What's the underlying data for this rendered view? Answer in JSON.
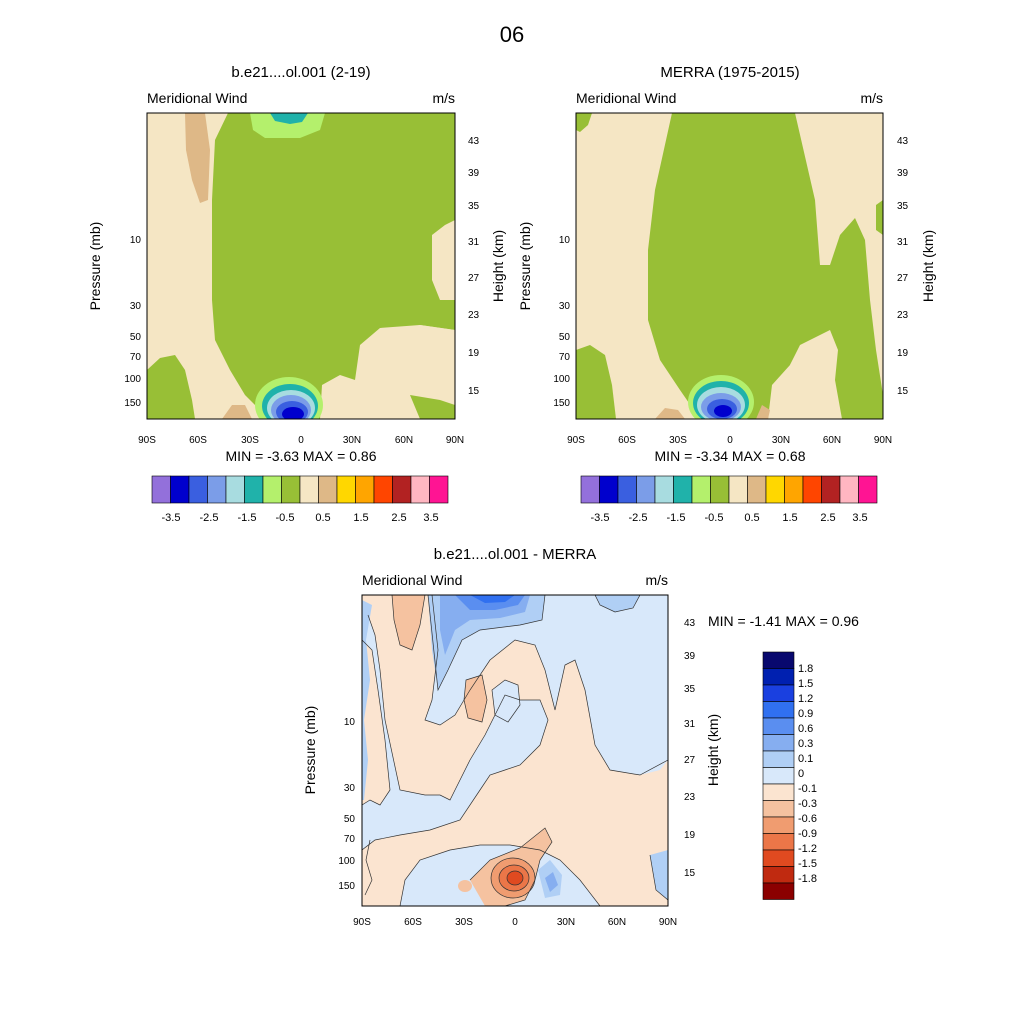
{
  "figure_title": "06",
  "chart_data": [
    {
      "type": "contour",
      "title": "b.e21....ol.001 (2-19)",
      "variable_label": "Meridional Wind",
      "units_label": "m/s",
      "ylabel": "Pressure (mb)",
      "y2label": "Height (km)",
      "x_ticks": [
        "90S",
        "60S",
        "30S",
        "0",
        "30N",
        "60N",
        "90N"
      ],
      "pressure_ticks": [
        "10",
        "30",
        "50",
        "70",
        "100",
        "150"
      ],
      "height_ticks": [
        "43",
        "39",
        "35",
        "31",
        "27",
        "23",
        "19",
        "15"
      ],
      "stats_text": "MIN = -3.63 MAX = 0.86",
      "min": -3.63,
      "max": 0.86,
      "colorbar": {
        "colors": [
          "#9370db",
          "#0000cd",
          "#3a5fe0",
          "#7b9de8",
          "#a8dce0",
          "#20b2aa",
          "#b4f06c",
          "#98bf36",
          "#f5e6c4",
          "#deb887",
          "#ffd700",
          "#ffa500",
          "#ff4500",
          "#b22222",
          "#ffb6c1",
          "#ff1493"
        ],
        "labels": [
          "-3.5",
          "-2.5",
          "-1.5",
          "-0.5",
          "0.5",
          "1.5",
          "2.5",
          "3.5"
        ]
      }
    },
    {
      "type": "contour",
      "title": "MERRA (1975-2015)",
      "variable_label": "Meridional Wind",
      "units_label": "m/s",
      "ylabel": "Pressure (mb)",
      "y2label": "Height (km)",
      "x_ticks": [
        "90S",
        "60S",
        "30S",
        "0",
        "30N",
        "60N",
        "90N"
      ],
      "pressure_ticks": [
        "10",
        "30",
        "50",
        "70",
        "100",
        "150"
      ],
      "height_ticks": [
        "43",
        "39",
        "35",
        "31",
        "27",
        "23",
        "19",
        "15"
      ],
      "stats_text": "MIN = -3.34 MAX = 0.68",
      "min": -3.34,
      "max": 0.68,
      "colorbar": {
        "colors": [
          "#9370db",
          "#0000cd",
          "#3a5fe0",
          "#7b9de8",
          "#a8dce0",
          "#20b2aa",
          "#b4f06c",
          "#98bf36",
          "#f5e6c4",
          "#deb887",
          "#ffd700",
          "#ffa500",
          "#ff4500",
          "#b22222",
          "#ffb6c1",
          "#ff1493"
        ],
        "labels": [
          "-3.5",
          "-2.5",
          "-1.5",
          "-0.5",
          "0.5",
          "1.5",
          "2.5",
          "3.5"
        ]
      }
    },
    {
      "type": "contour",
      "title": "b.e21....ol.001 - MERRA",
      "variable_label": "Meridional Wind",
      "units_label": "m/s",
      "ylabel": "Pressure (mb)",
      "y2label": "Height (km)",
      "x_ticks": [
        "90S",
        "60S",
        "30S",
        "0",
        "30N",
        "60N",
        "90N"
      ],
      "pressure_ticks": [
        "10",
        "30",
        "50",
        "70",
        "100",
        "150"
      ],
      "height_ticks": [
        "43",
        "39",
        "35",
        "31",
        "27",
        "23",
        "19",
        "15"
      ],
      "stats_text": "MIN = -1.41 MAX = 0.96",
      "min": -1.41,
      "max": 0.96,
      "colorbar": {
        "colors": [
          "#08086e",
          "#0020b0",
          "#1a40e0",
          "#3070f0",
          "#5a8ef0",
          "#86aef0",
          "#b0cff5",
          "#d8e8fa",
          "#fbe4d0",
          "#f5c2a0",
          "#f09c70",
          "#eb7648",
          "#e04a20",
          "#c02a10",
          "#8b0000"
        ],
        "labels": [
          "1.8",
          "1.5",
          "1.2",
          "0.9",
          "0.6",
          "0.3",
          "0.1",
          "0",
          "-0.1",
          "-0.3",
          "-0.6",
          "-0.9",
          "-1.2",
          "-1.5",
          "-1.8"
        ]
      }
    }
  ]
}
